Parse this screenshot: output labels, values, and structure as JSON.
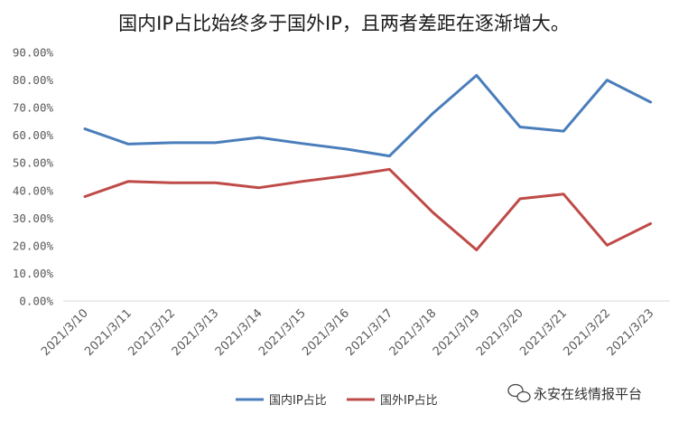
{
  "chart_data": {
    "type": "line",
    "title": "国内IP占比始终多于国外IP，且两者差距在逐渐增大。",
    "xlabel": "",
    "ylabel": "",
    "categories": [
      "2021/3/10",
      "2021/3/11",
      "2021/3/12",
      "2021/3/13",
      "2021/3/14",
      "2021/3/15",
      "2021/3/16",
      "2021/3/17",
      "2021/3/18",
      "2021/3/19",
      "2021/3/20",
      "2021/3/21",
      "2021/3/22",
      "2021/3/23"
    ],
    "yticks": [
      "0.00%",
      "10.00%",
      "20.00%",
      "30.00%",
      "40.00%",
      "50.00%",
      "60.00%",
      "70.00%",
      "80.00%",
      "90.00%"
    ],
    "ylim": [
      0,
      90
    ],
    "grid": false,
    "legend_position": "bottom",
    "series": [
      {
        "name": "国内IP占比",
        "color": "#4a7ebb",
        "values": [
          62.3,
          56.8,
          57.3,
          57.3,
          59.2,
          57.0,
          55.0,
          52.5,
          68.0,
          81.7,
          63.0,
          61.5,
          80.0,
          72.0
        ]
      },
      {
        "name": "国外IP占比",
        "color": "#be4b48",
        "values": [
          37.8,
          43.3,
          42.8,
          42.8,
          41.0,
          43.3,
          45.3,
          47.7,
          32.0,
          18.5,
          37.0,
          38.7,
          20.2,
          28.0
        ]
      }
    ]
  },
  "watermark": {
    "text": "永安在线情报平台",
    "icon": "wechat-icon"
  }
}
